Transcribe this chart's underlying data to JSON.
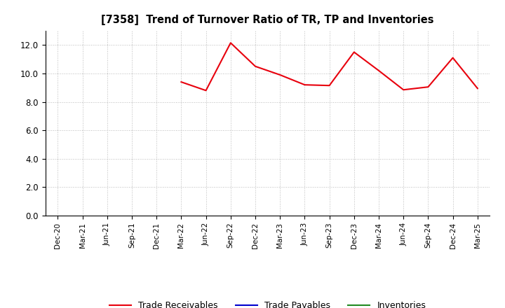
{
  "title": "[7358]  Trend of Turnover Ratio of TR, TP and Inventories",
  "x_labels": [
    "Dec-20",
    "Mar-21",
    "Jun-21",
    "Sep-21",
    "Dec-21",
    "Mar-22",
    "Jun-22",
    "Sep-22",
    "Dec-22",
    "Mar-23",
    "Jun-23",
    "Sep-23",
    "Dec-23",
    "Mar-24",
    "Jun-24",
    "Sep-24",
    "Dec-24",
    "Mar-25"
  ],
  "tr_x_indices": [
    5,
    6,
    7,
    8,
    9,
    10,
    11,
    12,
    13,
    14,
    15,
    16,
    17
  ],
  "tr_y_values": [
    9.4,
    8.8,
    12.15,
    10.5,
    9.9,
    9.2,
    9.15,
    11.5,
    10.2,
    8.85,
    9.05,
    11.1,
    8.95
  ],
  "ylim": [
    0.0,
    13.0
  ],
  "yticks": [
    0.0,
    2.0,
    4.0,
    6.0,
    8.0,
    10.0,
    12.0
  ],
  "line_color_tr": "#e8000d",
  "line_color_tp": "#0000cd",
  "line_color_inv": "#228B22",
  "legend_labels": [
    "Trade Receivables",
    "Trade Payables",
    "Inventories"
  ],
  "grid_color": "#bbbbbb",
  "line_width": 1.5
}
